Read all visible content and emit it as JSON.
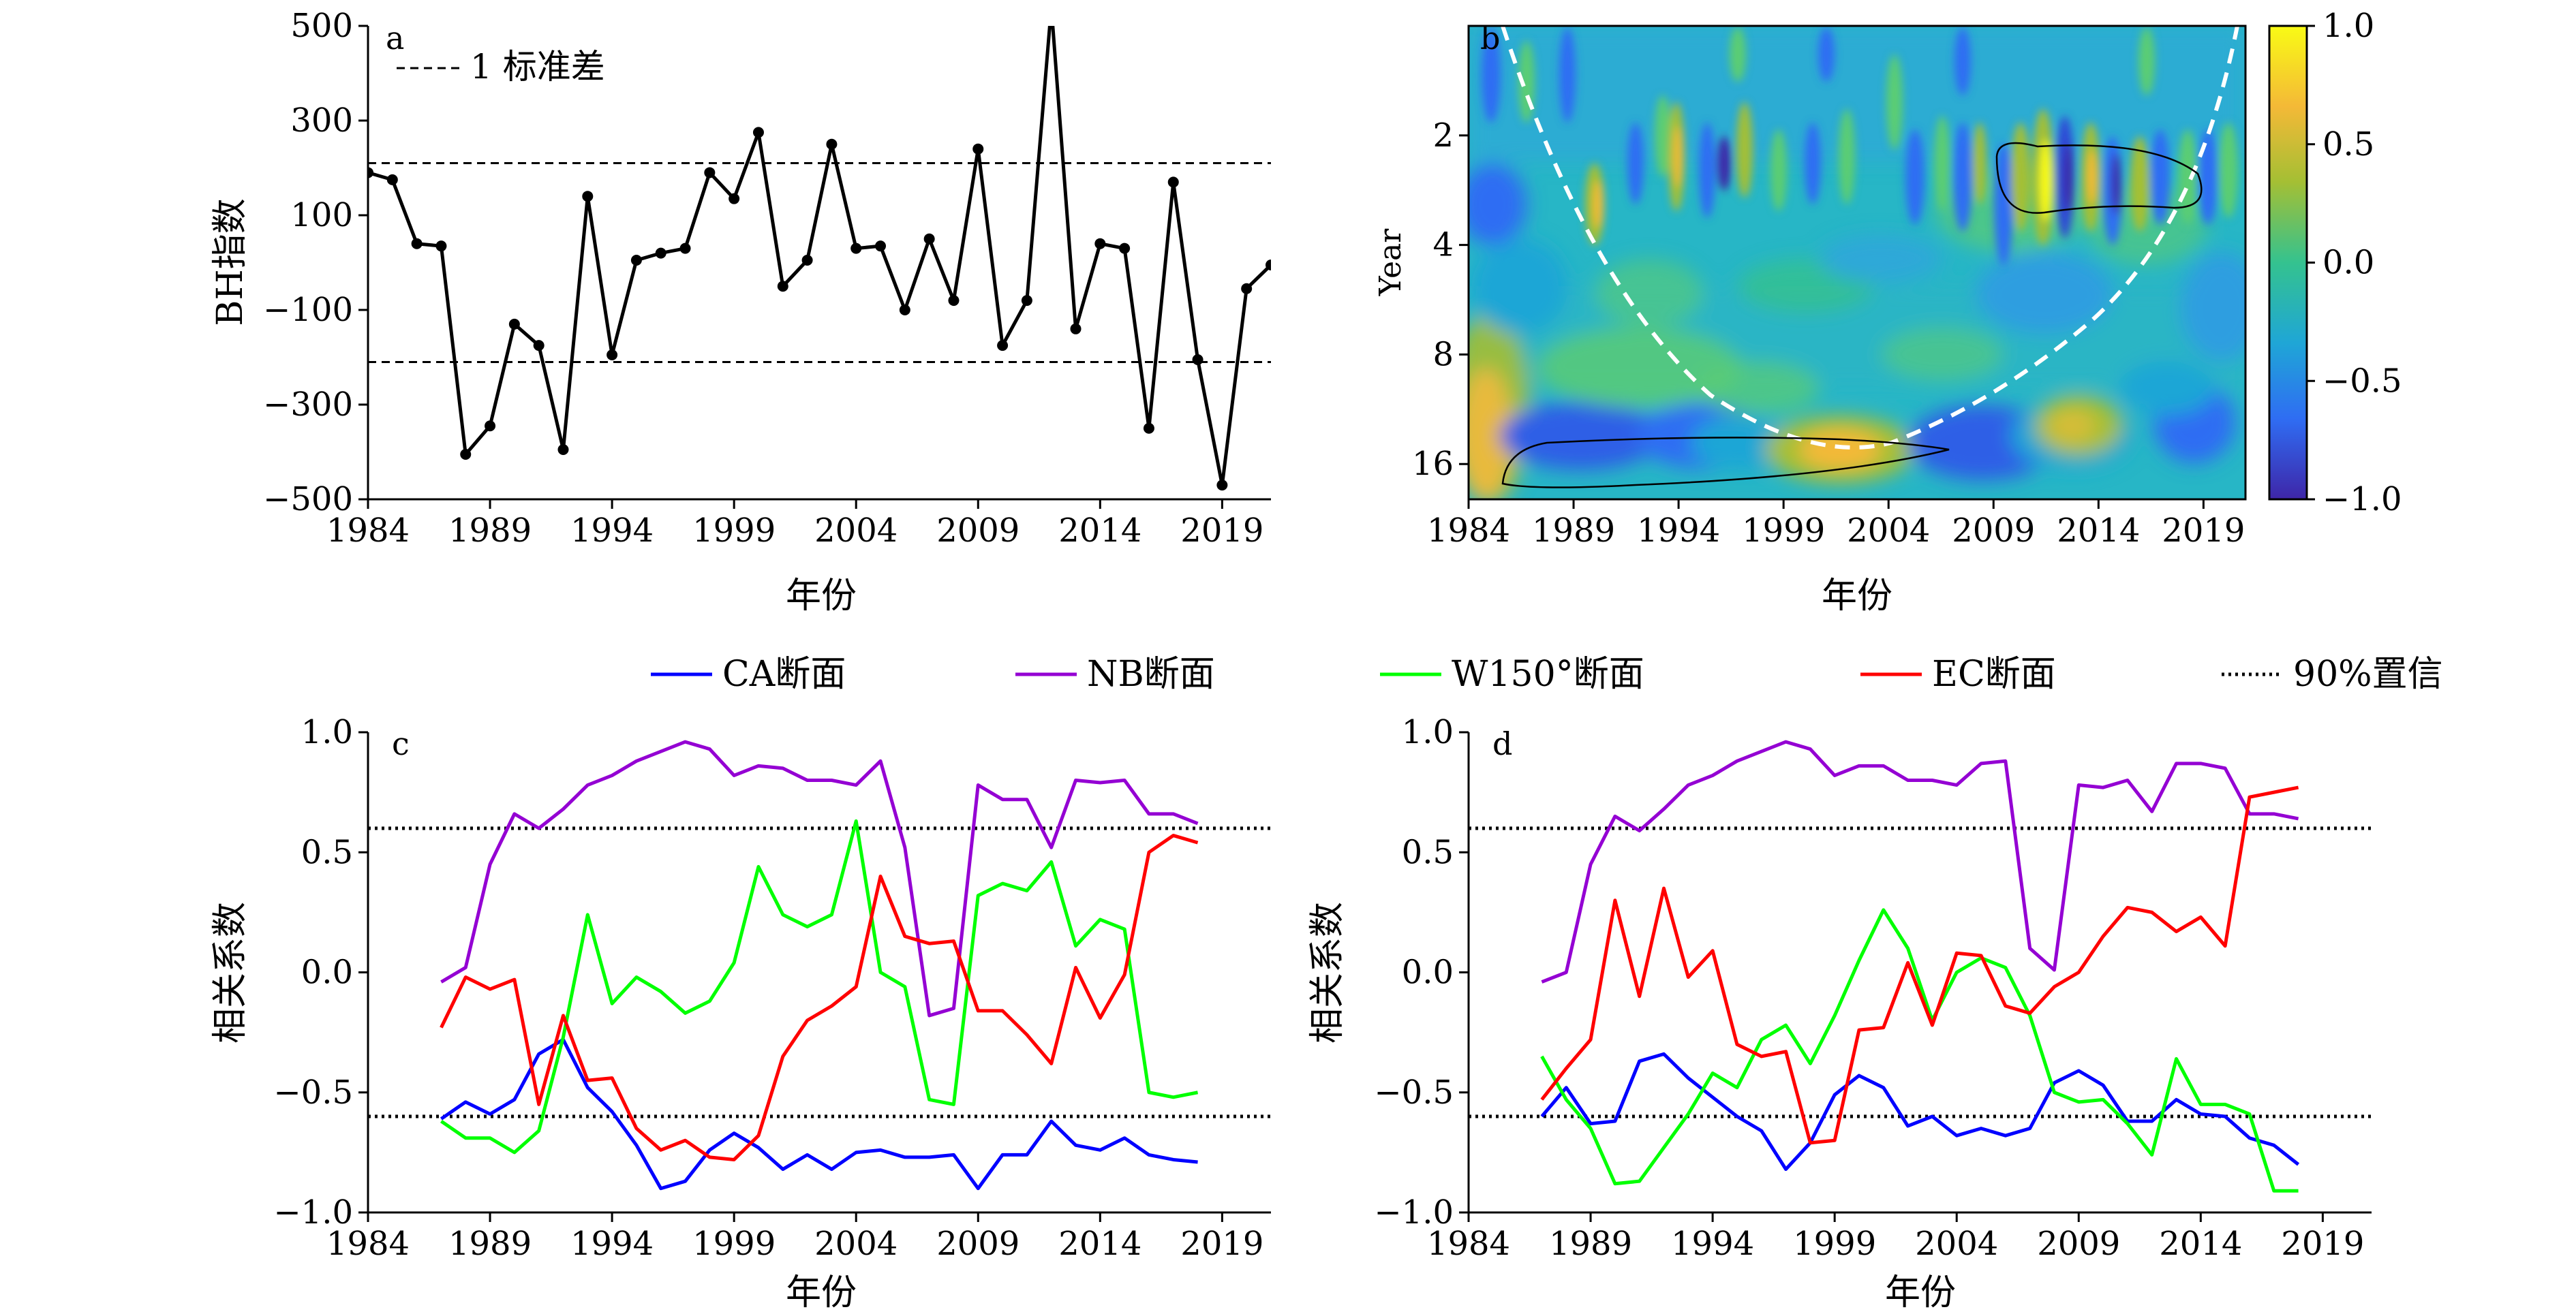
{
  "figure": {
    "legend_line_label": "1 标准差",
    "shared_legend": [
      {
        "name": "CA断面",
        "color": "#0000ff"
      },
      {
        "name": "NB断面",
        "color": "#9400d3"
      },
      {
        "name": "W150°断面",
        "color": "#00ff00"
      },
      {
        "name": "EC断面",
        "color": "#ff0000"
      },
      {
        "name": "90%置信",
        "color": "#000000",
        "style": "dotted"
      }
    ]
  },
  "chart_data": [
    {
      "panel": "a",
      "type": "line",
      "xlabel": "年份",
      "ylabel": "BH指数",
      "xlim": [
        1984,
        2021
      ],
      "ylim": [
        -500,
        500
      ],
      "xticks": [
        1984,
        1989,
        1994,
        1999,
        2004,
        2009,
        2014,
        2019
      ],
      "yticks": [
        -500,
        -300,
        -100,
        100,
        300,
        500
      ],
      "ytick_labels": [
        "−500",
        "−300",
        "−100",
        "100",
        "300",
        "500"
      ],
      "std_lines": [
        -210,
        210
      ],
      "series": [
        {
          "color": "#000000",
          "x": [
            1984,
            1985,
            1986,
            1987,
            1988,
            1989,
            1990,
            1991,
            1992,
            1993,
            1994,
            1995,
            1996,
            1997,
            1998,
            1999,
            2000,
            2001,
            2002,
            2003,
            2004,
            2005,
            2006,
            2007,
            2008,
            2009,
            2010,
            2011,
            2012,
            2013,
            2014,
            2015,
            2016,
            2017,
            2018,
            2019,
            2020,
            2021
          ],
          "values": [
            190,
            175,
            40,
            35,
            -405,
            -345,
            -130,
            -175,
            -395,
            140,
            -195,
            5,
            20,
            30,
            190,
            135,
            275,
            -50,
            5,
            250,
            30,
            35,
            -100,
            50,
            -80,
            240,
            -175,
            -80,
            540,
            -140,
            40,
            30,
            -350,
            170,
            -205,
            -470,
            -55,
            -5
          ]
        }
      ]
    },
    {
      "panel": "b",
      "type": "heatmap",
      "xlabel": "年份",
      "ylabel": "Year",
      "xlim": [
        1984,
        2021
      ],
      "xticks": [
        1984,
        1989,
        1994,
        1999,
        2004,
        2009,
        2014,
        2019
      ],
      "yticks": [
        2,
        4,
        8,
        16
      ],
      "colorbar": {
        "min": -1.0,
        "max": 1.0,
        "ticks": [
          "1.0",
          "0.5",
          "0.0",
          "−0.5",
          "−1.0"
        ]
      },
      "colormap": [
        "#3e26a8",
        "#2f6df3",
        "#1fa6d6",
        "#34c28f",
        "#a4bf34",
        "#f4b937",
        "#f9fb15"
      ]
    },
    {
      "panel": "c",
      "type": "line",
      "xlabel": "年份",
      "ylabel": "相关系数",
      "xlim": [
        1984,
        2021
      ],
      "ylim": [
        -1.0,
        1.0
      ],
      "xticks": [
        1984,
        1989,
        1994,
        1999,
        2004,
        2009,
        2014,
        2019
      ],
      "yticks": [
        -1.0,
        -0.5,
        0.0,
        0.5,
        1.0
      ],
      "ytick_labels": [
        "−1.0",
        "−0.5",
        "0.0",
        "0.5",
        "1.0"
      ],
      "confidence": [
        0.6,
        -0.6
      ],
      "x": [
        1987,
        1988,
        1989,
        1990,
        1991,
        1992,
        1993,
        1994,
        1995,
        1996,
        1997,
        1998,
        1999,
        2000,
        2001,
        2002,
        2003,
        2004,
        2005,
        2006,
        2007,
        2008,
        2009,
        2010,
        2011,
        2012,
        2013,
        2014,
        2015,
        2016,
        2017,
        2018
      ],
      "series": [
        {
          "name": "CA断面",
          "color": "#0000ff",
          "values": [
            -0.61,
            -0.54,
            -0.59,
            -0.53,
            -0.34,
            -0.28,
            -0.48,
            -0.58,
            -0.72,
            -0.9,
            -0.87,
            -0.74,
            -0.67,
            -0.73,
            -0.82,
            -0.76,
            -0.82,
            -0.75,
            -0.74,
            -0.77,
            -0.77,
            -0.76,
            -0.9,
            -0.76,
            -0.76,
            -0.62,
            -0.72,
            -0.74,
            -0.69,
            -0.76,
            -0.78,
            -0.79
          ]
        },
        {
          "name": "NB断面",
          "color": "#9400d3",
          "values": [
            -0.04,
            0.02,
            0.45,
            0.66,
            0.6,
            0.68,
            0.78,
            0.82,
            0.88,
            0.92,
            0.96,
            0.93,
            0.82,
            0.86,
            0.85,
            0.8,
            0.8,
            0.78,
            0.88,
            0.52,
            -0.18,
            -0.15,
            0.78,
            0.72,
            0.72,
            0.52,
            0.8,
            0.79,
            0.8,
            0.66,
            0.66,
            0.62
          ]
        },
        {
          "name": "W150°断面",
          "color": "#00ff00",
          "values": [
            -0.62,
            -0.69,
            -0.69,
            -0.75,
            -0.66,
            -0.27,
            0.24,
            -0.13,
            -0.02,
            -0.08,
            -0.17,
            -0.12,
            0.04,
            0.44,
            0.24,
            0.19,
            0.24,
            0.63,
            0.0,
            -0.06,
            -0.53,
            -0.55,
            0.32,
            0.37,
            0.34,
            0.46,
            0.11,
            0.22,
            0.18,
            -0.5,
            -0.52,
            -0.5
          ]
        },
        {
          "name": "EC断面",
          "color": "#ff0000",
          "values": [
            -0.23,
            -0.02,
            -0.07,
            -0.03,
            -0.55,
            -0.18,
            -0.45,
            -0.44,
            -0.65,
            -0.74,
            -0.7,
            -0.77,
            -0.78,
            -0.68,
            -0.35,
            -0.2,
            -0.14,
            -0.06,
            0.4,
            0.15,
            0.12,
            0.13,
            -0.16,
            -0.16,
            -0.26,
            -0.38,
            0.02,
            -0.19,
            -0.01,
            0.5,
            0.57,
            0.54
          ]
        }
      ]
    },
    {
      "panel": "d",
      "type": "line",
      "xlabel": "年份",
      "ylabel": "相关系数",
      "xlim": [
        1984,
        2021
      ],
      "ylim": [
        -1.0,
        1.0
      ],
      "xticks": [
        1984,
        1989,
        1994,
        1999,
        2004,
        2009,
        2014,
        2019
      ],
      "yticks": [
        -1.0,
        -0.5,
        0.0,
        0.5,
        1.0
      ],
      "ytick_labels": [
        "−1.0",
        "−0.5",
        "0.0",
        "0.5",
        "1.0"
      ],
      "confidence": [
        0.6,
        -0.6
      ],
      "x": [
        1987,
        1988,
        1989,
        1990,
        1991,
        1992,
        1993,
        1994,
        1995,
        1996,
        1997,
        1998,
        1999,
        2000,
        2001,
        2002,
        2003,
        2004,
        2005,
        2006,
        2007,
        2008,
        2009,
        2010,
        2011,
        2012,
        2013,
        2014,
        2015,
        2016,
        2017,
        2018
      ],
      "series": [
        {
          "name": "CA断面",
          "color": "#0000ff",
          "values": [
            -0.6,
            -0.48,
            -0.63,
            -0.62,
            -0.37,
            -0.34,
            -0.44,
            -0.52,
            -0.6,
            -0.66,
            -0.82,
            -0.71,
            -0.51,
            -0.43,
            -0.48,
            -0.64,
            -0.6,
            -0.68,
            -0.65,
            -0.68,
            -0.65,
            -0.46,
            -0.41,
            -0.47,
            -0.62,
            -0.62,
            -0.53,
            -0.59,
            -0.6,
            -0.69,
            -0.72,
            -0.8
          ]
        },
        {
          "name": "NB断面",
          "color": "#9400d3",
          "values": [
            -0.04,
            0.0,
            0.45,
            0.65,
            0.59,
            0.68,
            0.78,
            0.82,
            0.88,
            0.92,
            0.96,
            0.93,
            0.82,
            0.86,
            0.86,
            0.8,
            0.8,
            0.78,
            0.87,
            0.88,
            0.1,
            0.01,
            0.78,
            0.77,
            0.8,
            0.67,
            0.87,
            0.87,
            0.85,
            0.66,
            0.66,
            0.64
          ]
        },
        {
          "name": "W150°断面",
          "color": "#00ff00",
          "values": [
            -0.35,
            -0.53,
            -0.65,
            -0.88,
            -0.87,
            -0.73,
            -0.59,
            -0.42,
            -0.48,
            -0.28,
            -0.22,
            -0.38,
            -0.18,
            0.05,
            0.26,
            0.1,
            -0.2,
            0.0,
            0.06,
            0.02,
            -0.18,
            -0.5,
            -0.54,
            -0.53,
            -0.63,
            -0.76,
            -0.36,
            -0.55,
            -0.55,
            -0.59,
            -0.91,
            -0.91
          ]
        },
        {
          "name": "EC断面",
          "color": "#ff0000",
          "values": [
            -0.53,
            -0.4,
            -0.28,
            0.3,
            -0.1,
            0.35,
            -0.02,
            0.09,
            -0.3,
            -0.35,
            -0.33,
            -0.71,
            -0.7,
            -0.24,
            -0.23,
            0.04,
            -0.22,
            0.08,
            0.07,
            -0.14,
            -0.17,
            -0.06,
            0.0,
            0.15,
            0.27,
            0.25,
            0.17,
            0.23,
            0.11,
            0.73,
            0.75,
            0.77
          ]
        }
      ]
    }
  ]
}
